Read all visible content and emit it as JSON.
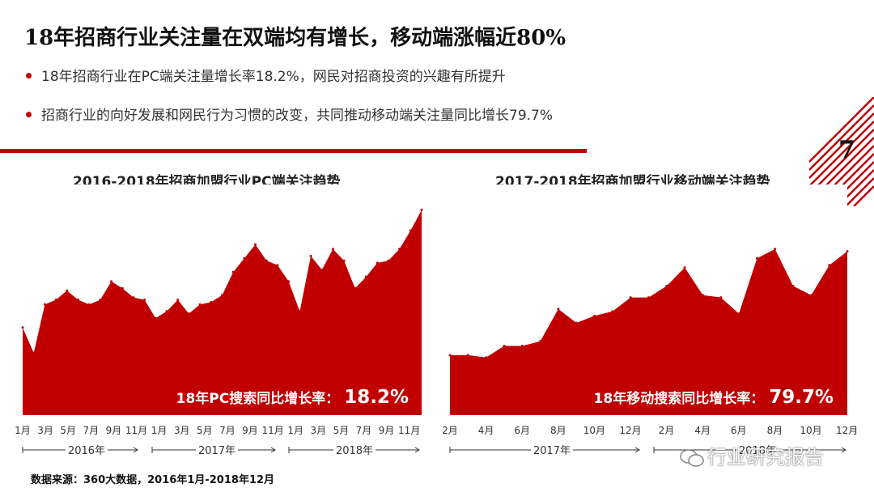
{
  "slide": {
    "title": "18年招商行业关注量在双端均有增长，移动端涨幅近80%",
    "bullets": [
      "18年招商行业在PC端关注量增长率18.2%，网民对招商投资的兴趣有所提升",
      "招商行业的向好发展和网民行为习惯的改变，共同推动移动端关注量同比增长79.7%"
    ],
    "page_number": "7",
    "source": "数据来源：360大数据，2016年1月-2018年12月",
    "watermark": "行业研究报告",
    "colors": {
      "accent": "#c00000",
      "text": "#222222"
    }
  },
  "chart_data": [
    {
      "type": "area",
      "title": "2016-2018年招商加盟行业PC端关注趋势",
      "annotation": "18年PC搜索同比增长率：",
      "annotation_value": "18.2%",
      "x_tick_labels": [
        "1月",
        "3月",
        "5月",
        "7月",
        "9月",
        "11月",
        "1月",
        "3月",
        "5月",
        "7月",
        "9月",
        "11月",
        "1月",
        "3月",
        "5月",
        "7月",
        "9月",
        "11月"
      ],
      "year_labels": [
        "2016年",
        "2017年",
        "2018年"
      ],
      "ylim": [
        0,
        100
      ],
      "values": [
        38,
        27,
        48,
        50,
        54,
        50,
        48,
        50,
        58,
        55,
        51,
        50,
        42,
        45,
        50,
        44,
        48,
        49,
        52,
        62,
        68,
        74,
        67,
        65,
        58,
        45,
        69,
        63,
        72,
        67,
        55,
        60,
        66,
        67,
        72,
        80,
        89
      ]
    },
    {
      "type": "area",
      "title": "2017-2018年招商加盟行业移动端关注趋势",
      "annotation": "18年移动搜索同比增长率：",
      "annotation_value": "79.7%",
      "x_tick_labels": [
        "2月",
        "4月",
        "6月",
        "8月",
        "10月",
        "12月",
        "2月",
        "4月",
        "6月",
        "8月",
        "10月",
        "12月"
      ],
      "year_labels": [
        "2017年",
        "2018年"
      ],
      "ylim": [
        0,
        100
      ],
      "values": [
        26,
        26,
        25,
        30,
        30,
        32,
        46,
        40,
        43,
        45,
        51,
        51,
        56,
        64,
        52,
        51,
        44,
        68,
        72,
        56,
        52,
        65,
        71
      ]
    }
  ]
}
